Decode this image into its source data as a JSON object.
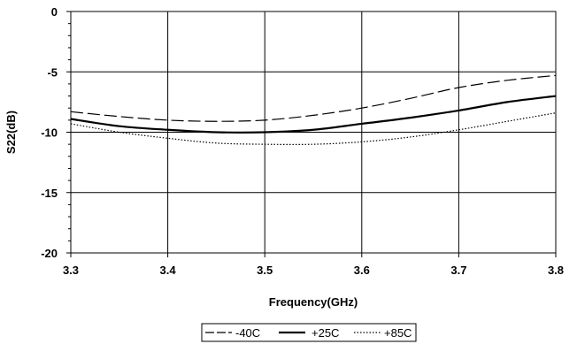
{
  "chart_data": {
    "type": "line",
    "xlabel": "Frequency(GHz)",
    "ylabel": "S22(dB)",
    "xlim": [
      3.3,
      3.8
    ],
    "ylim": [
      -20,
      0
    ],
    "x_ticks": [
      "3.3",
      "3.4",
      "3.5",
      "3.6",
      "3.7",
      "3.8"
    ],
    "y_ticks": [
      "0",
      "-5",
      "-10",
      "-15",
      "-20"
    ],
    "grid": true,
    "legend_position": "bottom",
    "x": [
      3.3,
      3.35,
      3.4,
      3.45,
      3.5,
      3.55,
      3.6,
      3.65,
      3.7,
      3.75,
      3.8
    ],
    "series": [
      {
        "name": "-40C",
        "style": "dashed",
        "color": "#000000",
        "values": [
          -8.3,
          -8.7,
          -9.0,
          -9.1,
          -9.0,
          -8.6,
          -8.0,
          -7.2,
          -6.3,
          -5.7,
          -5.3
        ]
      },
      {
        "name": "+25C",
        "style": "solid",
        "color": "#000000",
        "values": [
          -8.9,
          -9.5,
          -9.8,
          -10.0,
          -10.0,
          -9.8,
          -9.3,
          -8.8,
          -8.2,
          -7.5,
          -7.0
        ]
      },
      {
        "name": "+85C",
        "style": "dotted",
        "color": "#000000",
        "values": [
          -9.3,
          -10.0,
          -10.5,
          -10.9,
          -11.0,
          -11.0,
          -10.8,
          -10.4,
          -9.8,
          -9.1,
          -8.4
        ]
      }
    ]
  }
}
